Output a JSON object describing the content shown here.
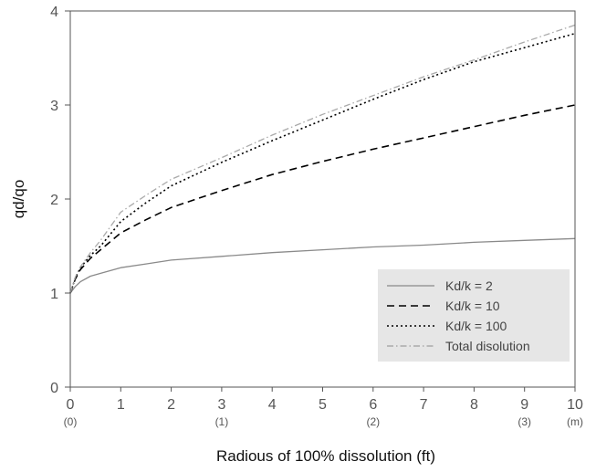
{
  "chart_data": {
    "type": "line",
    "title": "",
    "xlabel": "Radious of 100% dissolution (ft)",
    "ylabel": "qd/qo",
    "xlim": [
      0,
      10
    ],
    "ylim": [
      0,
      4
    ],
    "x_ticks": [
      "0",
      "1",
      "2",
      "3",
      "4",
      "5",
      "6",
      "7",
      "8",
      "9",
      "10"
    ],
    "y_ticks": [
      "0",
      "1",
      "2",
      "3",
      "4"
    ],
    "x_secondary_ticks": [
      {
        "x": 0,
        "label": "(0)"
      },
      {
        "x": 3,
        "label": "(1)"
      },
      {
        "x": 6,
        "label": "(2)"
      },
      {
        "x": 9,
        "label": "(3)"
      },
      {
        "x": 10,
        "label": "(m)"
      }
    ],
    "grid": false,
    "legend_position": "bottom-right",
    "series": [
      {
        "name": "Kd/k = 2",
        "style": "solid",
        "color": "#8a8a8a",
        "x": [
          0,
          0.1,
          0.2,
          0.4,
          0.6,
          1,
          1.5,
          2,
          3,
          4,
          5,
          6,
          7,
          8,
          9,
          10
        ],
        "y": [
          1.0,
          1.07,
          1.12,
          1.18,
          1.21,
          1.27,
          1.31,
          1.35,
          1.39,
          1.43,
          1.46,
          1.49,
          1.51,
          1.54,
          1.56,
          1.58
        ]
      },
      {
        "name": "Kd/k = 10",
        "style": "dashed",
        "color": "#000000",
        "x": [
          0,
          0.1,
          0.2,
          0.4,
          0.6,
          1,
          1.5,
          2,
          3,
          4,
          5,
          6,
          7,
          8,
          9,
          10
        ],
        "y": [
          1.0,
          1.15,
          1.25,
          1.37,
          1.46,
          1.64,
          1.78,
          1.91,
          2.09,
          2.26,
          2.4,
          2.53,
          2.65,
          2.77,
          2.89,
          3.0
        ]
      },
      {
        "name": "Kd/k = 100",
        "style": "dotted",
        "color": "#000000",
        "x": [
          0,
          0.1,
          0.2,
          0.4,
          0.6,
          1,
          1.5,
          2,
          3,
          4,
          5,
          6,
          7,
          8,
          9,
          10
        ],
        "y": [
          1.0,
          1.16,
          1.27,
          1.4,
          1.5,
          1.76,
          1.96,
          2.14,
          2.39,
          2.62,
          2.84,
          3.06,
          3.27,
          3.46,
          3.61,
          3.76
        ]
      },
      {
        "name": "Total disolution",
        "style": "dashdot",
        "color": "#aaaaaa",
        "x": [
          0,
          0.1,
          0.2,
          0.4,
          0.6,
          1,
          1.5,
          2,
          3,
          4,
          5,
          6,
          7,
          8,
          9,
          10
        ],
        "y": [
          1.0,
          1.17,
          1.28,
          1.43,
          1.56,
          1.86,
          2.04,
          2.21,
          2.44,
          2.68,
          2.9,
          3.1,
          3.3,
          3.48,
          3.67,
          3.85
        ]
      }
    ]
  }
}
